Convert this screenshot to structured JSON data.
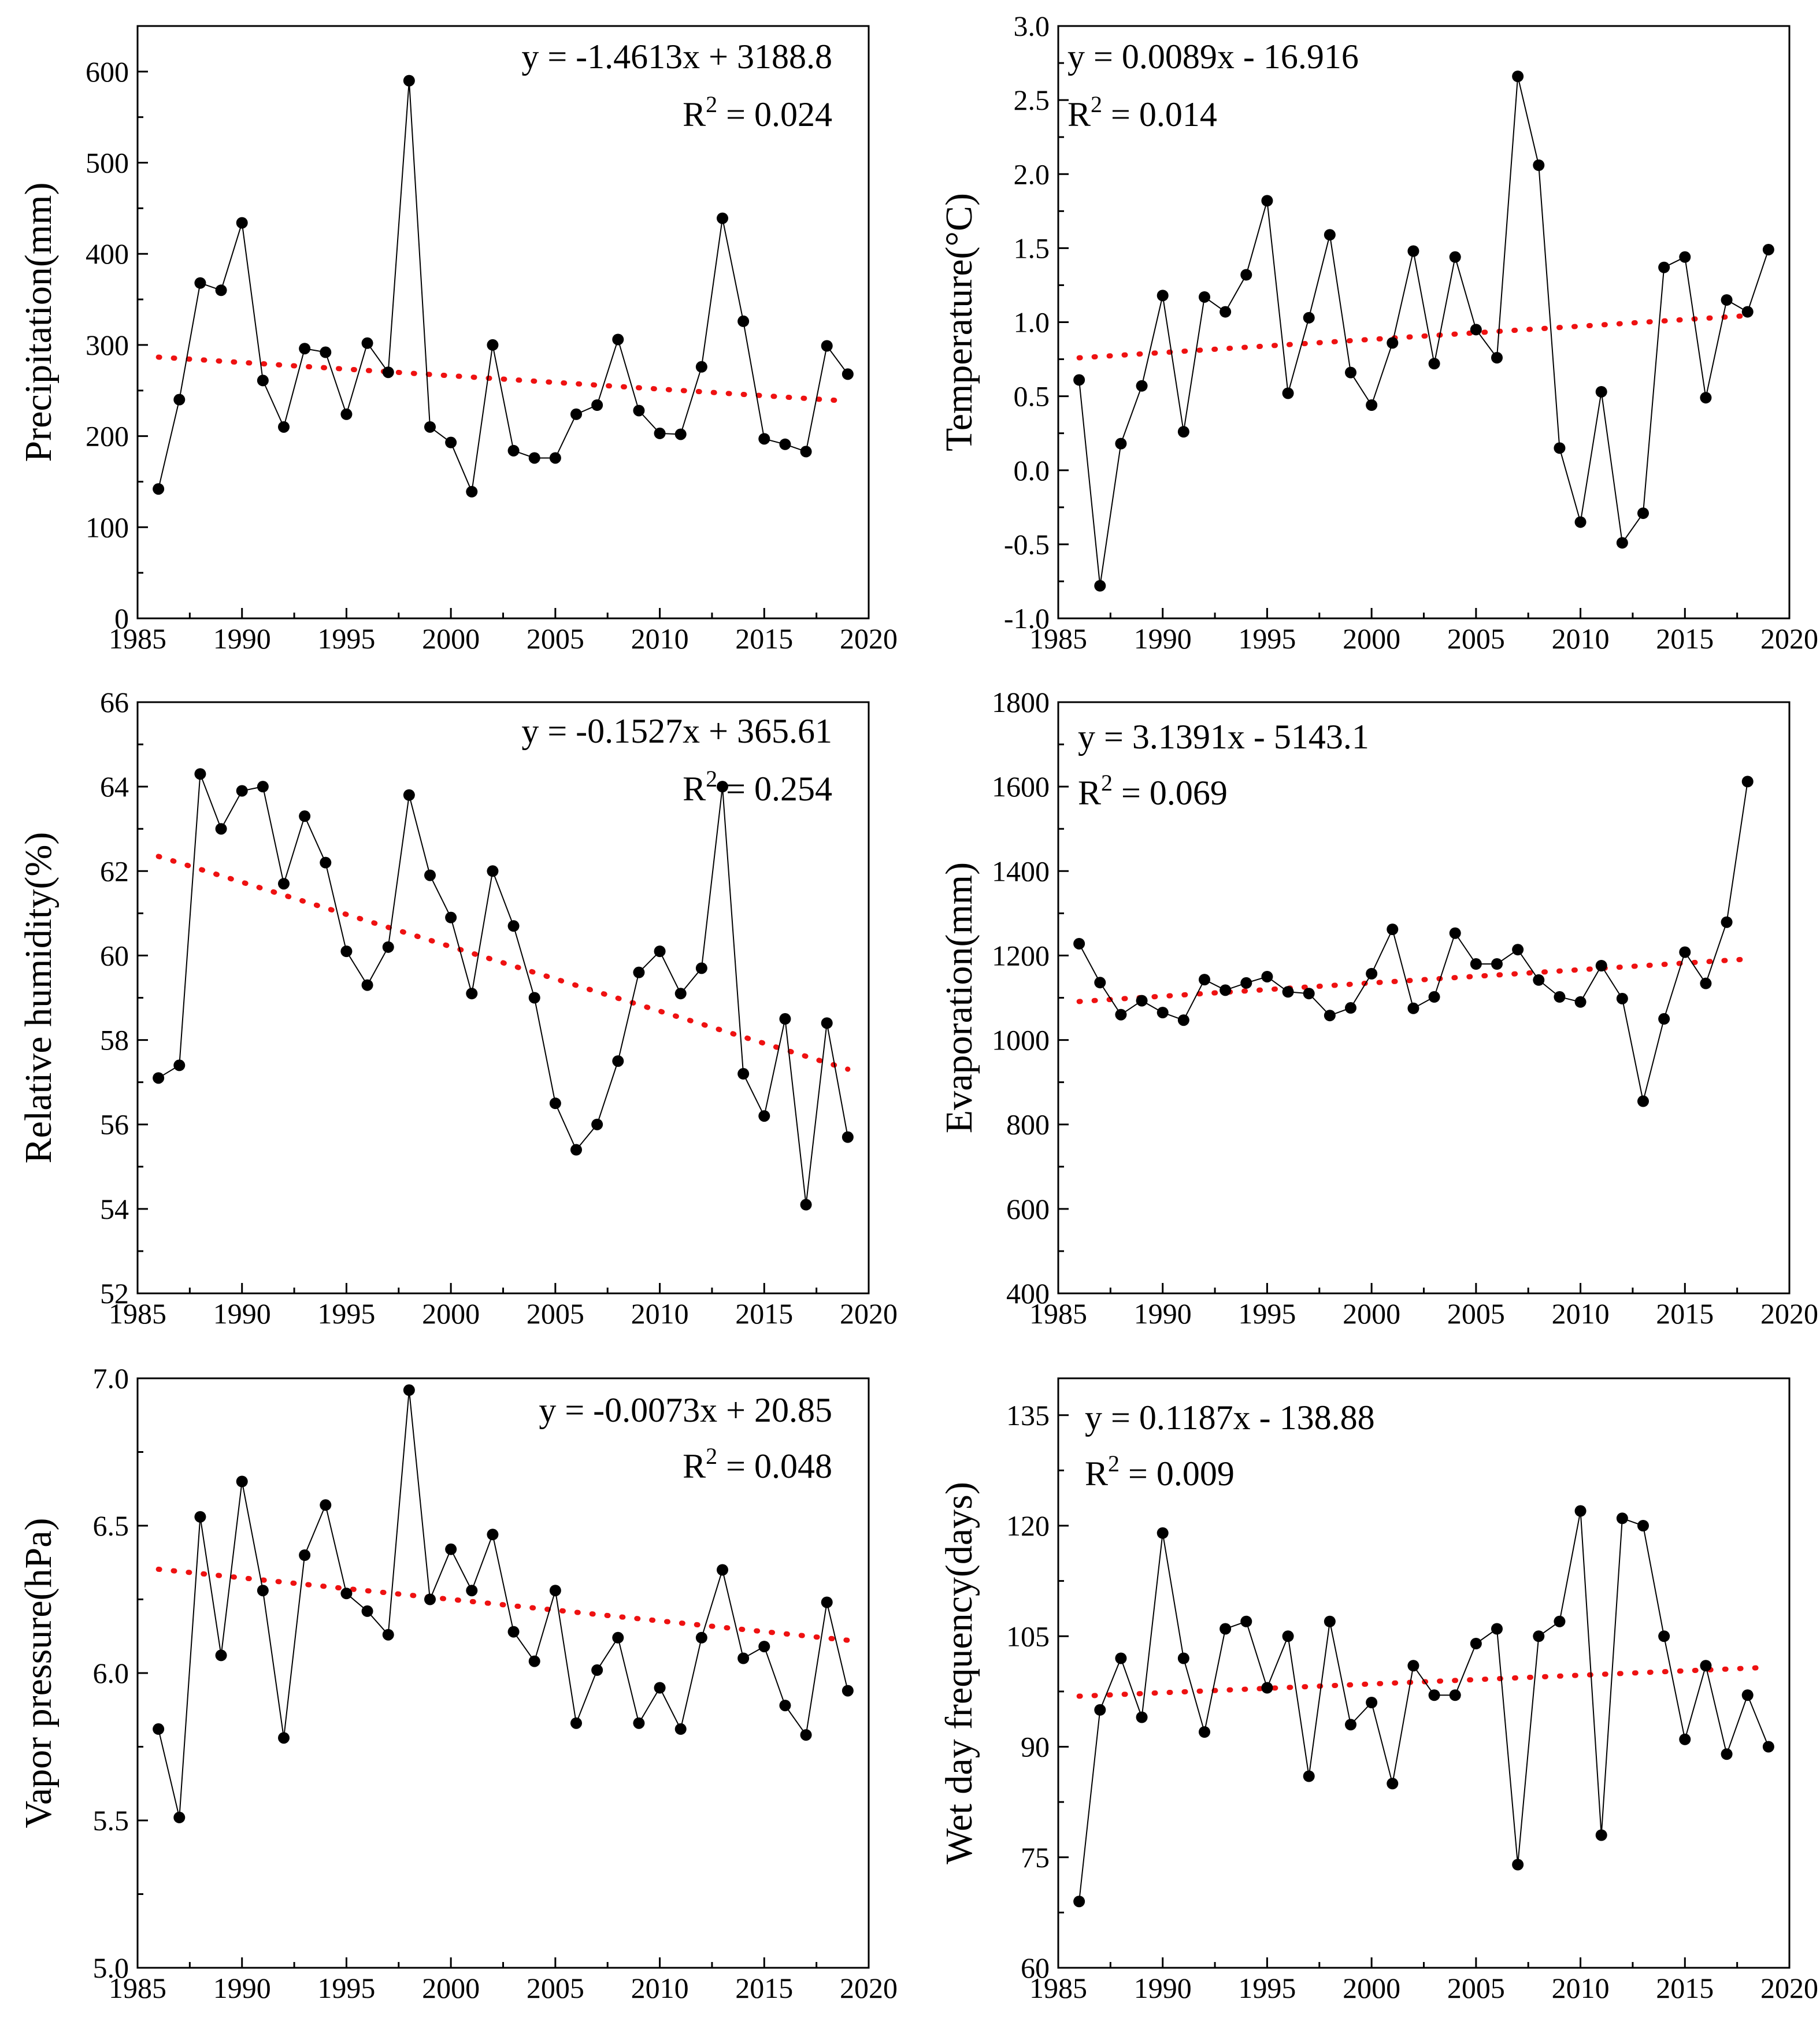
{
  "figure": {
    "colors": {
      "data_line": "#000000",
      "marker": "#000000",
      "trend": "#ee1111",
      "axis": "#000000",
      "background": "#ffffff"
    }
  },
  "chart_data": [
    {
      "id": "precip",
      "type": "line",
      "title": "",
      "xlabel": "",
      "ylabel": "Precipitation(mm)",
      "xlim": [
        1985,
        2020
      ],
      "ylim": [
        0,
        650
      ],
      "xticks": [
        1985,
        1990,
        1995,
        2000,
        2005,
        2010,
        2015,
        2020
      ],
      "yticks": [
        0,
        100,
        200,
        300,
        400,
        500,
        600
      ],
      "ytick_labels": [
        "0",
        "100",
        "200",
        "300",
        "400",
        "500",
        "600"
      ],
      "x": [
        1986,
        1987,
        1988,
        1989,
        1990,
        1991,
        1992,
        1993,
        1994,
        1995,
        1996,
        1997,
        1998,
        1999,
        2000,
        2001,
        2002,
        2003,
        2004,
        2005,
        2006,
        2007,
        2008,
        2009,
        2010,
        2011,
        2012,
        2013,
        2014,
        2015,
        2016,
        2017,
        2018,
        2019
      ],
      "y": [
        142,
        240,
        368,
        360,
        434,
        261,
        210,
        296,
        292,
        224,
        302,
        270,
        590,
        210,
        193,
        139,
        300,
        184,
        176,
        176,
        224,
        234,
        306,
        228,
        203,
        202,
        276,
        439,
        326,
        197,
        191,
        183,
        299,
        268
      ],
      "trend": {
        "slope": -1.4613,
        "intercept": 3188.8,
        "x_range": [
          1986,
          2019
        ]
      },
      "equation": "y = -1.4613x + 3188.8",
      "r2_prefix": "R",
      "r2_sup": "2",
      "r2_value": " = 0.024",
      "legend_position": "top-right"
    },
    {
      "id": "temp",
      "type": "line",
      "title": "",
      "xlabel": "",
      "ylabel": "Temperature(°C)",
      "xlim": [
        1985,
        2020
      ],
      "ylim": [
        -1.0,
        3.0
      ],
      "xticks": [
        1985,
        1990,
        1995,
        2000,
        2005,
        2010,
        2015,
        2020
      ],
      "yticks": [
        -1.0,
        -0.5,
        0.0,
        0.5,
        1.0,
        1.5,
        2.0,
        2.5,
        3.0
      ],
      "ytick_labels": [
        "-1.0",
        "-0.5",
        "0.0",
        "0.5",
        "1.0",
        "1.5",
        "2.0",
        "2.5",
        "3.0"
      ],
      "x": [
        1986,
        1987,
        1988,
        1989,
        1990,
        1991,
        1992,
        1993,
        1994,
        1995,
        1996,
        1997,
        1998,
        1999,
        2000,
        2001,
        2002,
        2003,
        2004,
        2005,
        2006,
        2007,
        2008,
        2009,
        2010,
        2011,
        2012,
        2013,
        2014,
        2015,
        2016,
        2017,
        2018,
        2019
      ],
      "y": [
        0.61,
        -0.78,
        0.18,
        0.57,
        1.18,
        0.26,
        1.17,
        1.07,
        1.32,
        1.82,
        0.52,
        1.03,
        1.59,
        0.66,
        0.44,
        0.86,
        1.48,
        0.72,
        1.44,
        0.95,
        0.76,
        2.66,
        2.06,
        0.15,
        -0.35,
        0.53,
        -0.49,
        -0.29,
        1.37,
        1.44,
        0.49,
        1.15,
        1.07,
        1.49
      ],
      "trend": {
        "slope": 0.0089,
        "intercept": -16.916,
        "x_range": [
          1986,
          2018
        ]
      },
      "equation": "y = 0.0089x - 16.916",
      "r2_prefix": "R",
      "r2_sup": "2",
      "r2_value": " = 0.014",
      "legend_position": "top-left"
    },
    {
      "id": "rh",
      "type": "line",
      "title": "",
      "xlabel": "",
      "ylabel": "Relative humidity(%)",
      "xlim": [
        1985,
        2020
      ],
      "ylim": [
        52,
        66
      ],
      "xticks": [
        1985,
        1990,
        1995,
        2000,
        2005,
        2010,
        2015,
        2020
      ],
      "yticks": [
        52,
        54,
        56,
        58,
        60,
        62,
        64,
        66
      ],
      "ytick_labels": [
        "52",
        "54",
        "56",
        "58",
        "60",
        "62",
        "64",
        "66"
      ],
      "x": [
        1986,
        1987,
        1988,
        1989,
        1990,
        1991,
        1992,
        1993,
        1994,
        1995,
        1996,
        1997,
        1998,
        1999,
        2000,
        2001,
        2002,
        2003,
        2004,
        2005,
        2006,
        2007,
        2008,
        2009,
        2010,
        2011,
        2012,
        2013,
        2014,
        2015,
        2016,
        2017,
        2018,
        2019
      ],
      "y": [
        57.1,
        57.4,
        64.3,
        63.0,
        63.9,
        64.0,
        61.7,
        63.3,
        62.2,
        60.1,
        59.3,
        60.2,
        63.8,
        61.9,
        60.9,
        59.1,
        62.0,
        60.7,
        59.0,
        56.5,
        55.4,
        56.0,
        57.5,
        59.6,
        60.1,
        59.1,
        59.7,
        64.0,
        57.2,
        56.2,
        58.5,
        54.1,
        58.4,
        55.7
      ],
      "trend": {
        "slope": -0.1527,
        "intercept": 365.61,
        "x_range": [
          1986,
          2019
        ]
      },
      "equation": "y = -0.1527x + 365.61",
      "r2_prefix": "R",
      "r2_sup": "2",
      "r2_value": " = 0.254",
      "legend_position": "top-right"
    },
    {
      "id": "evap",
      "type": "line",
      "title": "",
      "xlabel": "",
      "ylabel": "Evaporation(mm)",
      "xlim": [
        1985,
        2020
      ],
      "ylim": [
        400,
        1800
      ],
      "xticks": [
        1985,
        1990,
        1995,
        2000,
        2005,
        2010,
        2015,
        2020
      ],
      "yticks": [
        400,
        600,
        800,
        1000,
        1200,
        1400,
        1600,
        1800
      ],
      "ytick_labels": [
        "400",
        "600",
        "800",
        "1000",
        "1200",
        "1400",
        "1600",
        "1800"
      ],
      "x": [
        1986,
        1987,
        1988,
        1989,
        1990,
        1991,
        1992,
        1993,
        1994,
        1995,
        1996,
        1997,
        1998,
        1999,
        2000,
        2001,
        2002,
        2003,
        2004,
        2005,
        2006,
        2007,
        2008,
        2009,
        2010,
        2011,
        2012,
        2013,
        2014,
        2015,
        2016,
        2017,
        2018
      ],
      "y": [
        1228,
        1136,
        1060,
        1093,
        1065,
        1047,
        1143,
        1118,
        1135,
        1150,
        1114,
        1110,
        1058,
        1076,
        1157,
        1262,
        1075,
        1102,
        1253,
        1180,
        1180,
        1214,
        1142,
        1102,
        1090,
        1176,
        1098,
        855,
        1050,
        1208,
        1134,
        1279,
        1612
      ],
      "trend": {
        "slope": 3.1391,
        "intercept": -5143.1,
        "x_range": [
          1986,
          2018
        ]
      },
      "equation": "y = 3.1391x - 5143.1",
      "r2_prefix": "R",
      "r2_sup": "2",
      "r2_value": " = 0.069",
      "legend_position": "top-left"
    },
    {
      "id": "vp",
      "type": "line",
      "title": "",
      "xlabel": "",
      "ylabel": "Vapor pressure(hPa)",
      "xlim": [
        1985,
        2020
      ],
      "ylim": [
        5.0,
        7.0
      ],
      "xticks": [
        1985,
        1990,
        1995,
        2000,
        2005,
        2010,
        2015,
        2020
      ],
      "yticks": [
        5.0,
        5.5,
        6.0,
        6.5,
        7.0
      ],
      "ytick_labels": [
        "5.0",
        "5.5",
        "6.0",
        "6.5",
        "7.0"
      ],
      "x": [
        1986,
        1987,
        1988,
        1989,
        1990,
        1991,
        1992,
        1993,
        1994,
        1995,
        1996,
        1997,
        1998,
        1999,
        2000,
        2001,
        2002,
        2003,
        2004,
        2005,
        2006,
        2007,
        2008,
        2009,
        2010,
        2011,
        2012,
        2013,
        2014,
        2015,
        2016,
        2017,
        2018,
        2019
      ],
      "y": [
        5.81,
        5.51,
        6.53,
        6.06,
        6.65,
        6.28,
        5.78,
        6.4,
        6.57,
        6.27,
        6.21,
        6.13,
        6.96,
        6.25,
        6.42,
        6.28,
        6.47,
        6.14,
        6.04,
        6.28,
        5.83,
        6.01,
        6.12,
        5.83,
        5.95,
        5.81,
        6.12,
        6.35,
        6.05,
        6.09,
        5.89,
        5.79,
        6.24,
        5.94
      ],
      "trend": {
        "slope": -0.0073,
        "intercept": 20.85,
        "x_range": [
          1986,
          2019
        ]
      },
      "equation": "y = -0.0073x + 20.85",
      "r2_prefix": "R",
      "r2_sup": "2",
      "r2_value": " = 0.048",
      "legend_position": "top-right"
    },
    {
      "id": "wet",
      "type": "line",
      "title": "",
      "xlabel": "",
      "ylabel": "Wet day frequency(days)",
      "xlim": [
        1985,
        2020
      ],
      "ylim": [
        60,
        140
      ],
      "xticks": [
        1985,
        1990,
        1995,
        2000,
        2005,
        2010,
        2015,
        2020
      ],
      "yticks": [
        60,
        75,
        90,
        105,
        120,
        135
      ],
      "ytick_labels": [
        "60",
        "75",
        "90",
        "105",
        "120",
        "135"
      ],
      "x": [
        1986,
        1987,
        1988,
        1989,
        1990,
        1991,
        1992,
        1993,
        1994,
        1995,
        1996,
        1997,
        1998,
        1999,
        2000,
        2001,
        2002,
        2003,
        2004,
        2005,
        2006,
        2007,
        2008,
        2009,
        2010,
        2011,
        2012,
        2013,
        2014,
        2015,
        2016,
        2017,
        2018,
        2019
      ],
      "y": [
        69,
        95,
        102,
        94,
        119,
        102,
        92,
        106,
        107,
        98,
        105,
        86,
        107,
        93,
        96,
        85,
        101,
        97,
        97,
        104,
        106,
        74,
        105,
        107,
        122,
        78,
        121,
        120,
        105,
        91,
        101,
        89,
        97,
        90
      ],
      "trend": {
        "slope": 0.1187,
        "intercept": -138.88,
        "x_range": [
          1986,
          2019
        ]
      },
      "equation": "y = 0.1187x - 138.88",
      "r2_prefix": "R",
      "r2_sup": "2",
      "r2_value": " = 0.009",
      "legend_position": "top-left"
    }
  ]
}
